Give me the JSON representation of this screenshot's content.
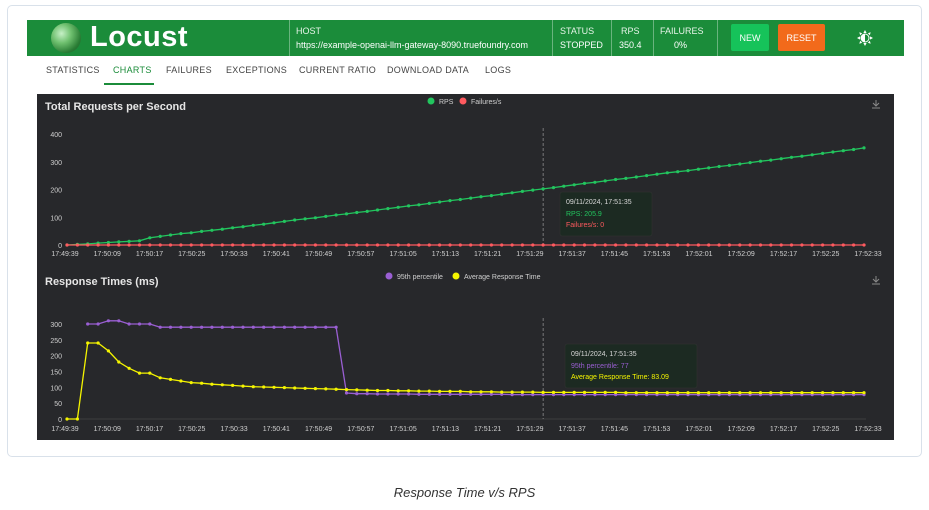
{
  "app": {
    "name": "Locust",
    "host_label": "HOST",
    "host_value": "https://example-openai-llm-gateway-8090.truefoundry.com",
    "status_label": "STATUS",
    "status_value": "STOPPED",
    "rps_label": "RPS",
    "rps_value": "350.4",
    "failures_label": "FAILURES",
    "failures_value": "0%",
    "new_button": "NEW",
    "reset_button": "RESET"
  },
  "tabs": [
    {
      "label": "STATISTICS"
    },
    {
      "label": "CHARTS",
      "active": true
    },
    {
      "label": "FAILURES"
    },
    {
      "label": "EXCEPTIONS"
    },
    {
      "label": "CURRENT RATIO"
    },
    {
      "label": "DOWNLOAD DATA"
    },
    {
      "label": "LOGS"
    }
  ],
  "colors": {
    "header": "#1b8c3a",
    "rps": "#22c55e",
    "failures": "#ff5a5f",
    "p95": "#9a5fd3",
    "avg": "#f5f500",
    "chart_bg": "#27282b"
  },
  "caption": "Response Time v/s RPS",
  "chart_data": [
    {
      "type": "line",
      "title": "Total Requests per Second",
      "x_ticks": [
        "17:49:39",
        "17:50:09",
        "17:50:17",
        "17:50:25",
        "17:50:33",
        "17:50:41",
        "17:50:49",
        "17:50:57",
        "17:51:05",
        "17:51:13",
        "17:51:21",
        "17:51:29",
        "17:51:37",
        "17:51:45",
        "17:51:53",
        "17:52:01",
        "17:52:09",
        "17:52:17",
        "17:52:25",
        "17:52:33"
      ],
      "ylim": [
        0,
        400
      ],
      "y_ticks": [
        0,
        100,
        200,
        300,
        400
      ],
      "legend_position": "top-center",
      "series": [
        {
          "name": "RPS",
          "values": [
            0,
            2,
            4,
            7,
            9,
            11,
            13,
            15,
            26,
            31,
            36,
            41,
            44,
            49,
            53,
            57,
            62,
            66,
            71,
            75,
            80,
            85,
            90,
            94,
            98,
            103,
            108,
            112,
            117,
            121,
            126,
            131,
            136,
            141,
            145,
            150,
            155,
            160,
            164,
            169,
            174,
            178,
            183,
            188,
            193,
            198,
            202,
            207,
            212,
            217,
            222,
            226,
            231,
            236,
            240,
            245,
            250,
            255,
            260,
            264,
            268,
            273,
            278,
            283,
            287,
            292,
            297,
            302,
            306,
            311,
            316,
            320,
            325,
            330,
            335,
            340,
            344,
            350
          ]
        },
        {
          "name": "Failures/s",
          "values": [
            0,
            0,
            0,
            0,
            0,
            0,
            0,
            0,
            0,
            0,
            0,
            0,
            0,
            0,
            0,
            0,
            0,
            0,
            0,
            0,
            0,
            0,
            0,
            0,
            0,
            0,
            0,
            0,
            0,
            0,
            0,
            0,
            0,
            0,
            0,
            0,
            0,
            0,
            0,
            0,
            0,
            0,
            0,
            0,
            0,
            0,
            0,
            0,
            0,
            0,
            0,
            0,
            0,
            0,
            0,
            0,
            0,
            0,
            0,
            0,
            0,
            0,
            0,
            0,
            0,
            0,
            0,
            0,
            0,
            0,
            0,
            0,
            0,
            0,
            0,
            0,
            0,
            0
          ]
        }
      ],
      "tooltip": {
        "time": "09/11/2024, 17:51:35",
        "lines": [
          "RPS: 205.9",
          "Failures/s: 0"
        ]
      }
    },
    {
      "type": "line",
      "title": "Response Times (ms)",
      "x_ticks": [
        "17:49:39",
        "17:50:09",
        "17:50:17",
        "17:50:25",
        "17:50:33",
        "17:50:41",
        "17:50:49",
        "17:50:57",
        "17:51:05",
        "17:51:13",
        "17:51:21",
        "17:51:29",
        "17:51:37",
        "17:51:45",
        "17:51:53",
        "17:52:01",
        "17:52:09",
        "17:52:17",
        "17:52:25",
        "17:52:33"
      ],
      "ylim": [
        0,
        300
      ],
      "y_ticks": [
        0,
        50,
        100,
        150,
        200,
        250,
        300
      ],
      "legend_position": "top-center",
      "series": [
        {
          "name": "95th percentile",
          "values": [
            null,
            null,
            300,
            300,
            310,
            310,
            300,
            300,
            300,
            290,
            290,
            290,
            290,
            290,
            290,
            290,
            290,
            290,
            290,
            290,
            290,
            290,
            290,
            290,
            290,
            290,
            290,
            82,
            80,
            80,
            79,
            79,
            79,
            79,
            78,
            78,
            78,
            78,
            78,
            78,
            78,
            78,
            78,
            77,
            77,
            77,
            77,
            77,
            77,
            77,
            77,
            77,
            77,
            77,
            77,
            77,
            77,
            77,
            77,
            77,
            77,
            77,
            77,
            77,
            77,
            77,
            77,
            77,
            77,
            77,
            77,
            77,
            77,
            77,
            77,
            77,
            77,
            77
          ]
        },
        {
          "name": "Average Response Time",
          "values": [
            0,
            0,
            240,
            240,
            215,
            180,
            160,
            145,
            145,
            130,
            125,
            120,
            115,
            113,
            110,
            108,
            106,
            104,
            102,
            101,
            100,
            99,
            98,
            97,
            96,
            95,
            94,
            93,
            92,
            91,
            90,
            90,
            89,
            89,
            88,
            88,
            87,
            87,
            87,
            86,
            86,
            86,
            85,
            85,
            85,
            85,
            84,
            84,
            84,
            84,
            84,
            84,
            84,
            84,
            83,
            83,
            83,
            83,
            83,
            83,
            83,
            83,
            83,
            83,
            83,
            83,
            83,
            83,
            83,
            83,
            83,
            83,
            83,
            83,
            83,
            83,
            83,
            83
          ]
        }
      ],
      "tooltip": {
        "time": "09/11/2024, 17:51:35",
        "lines": [
          "95th percentile: 77",
          "Average Response Time: 83.09"
        ]
      }
    }
  ]
}
